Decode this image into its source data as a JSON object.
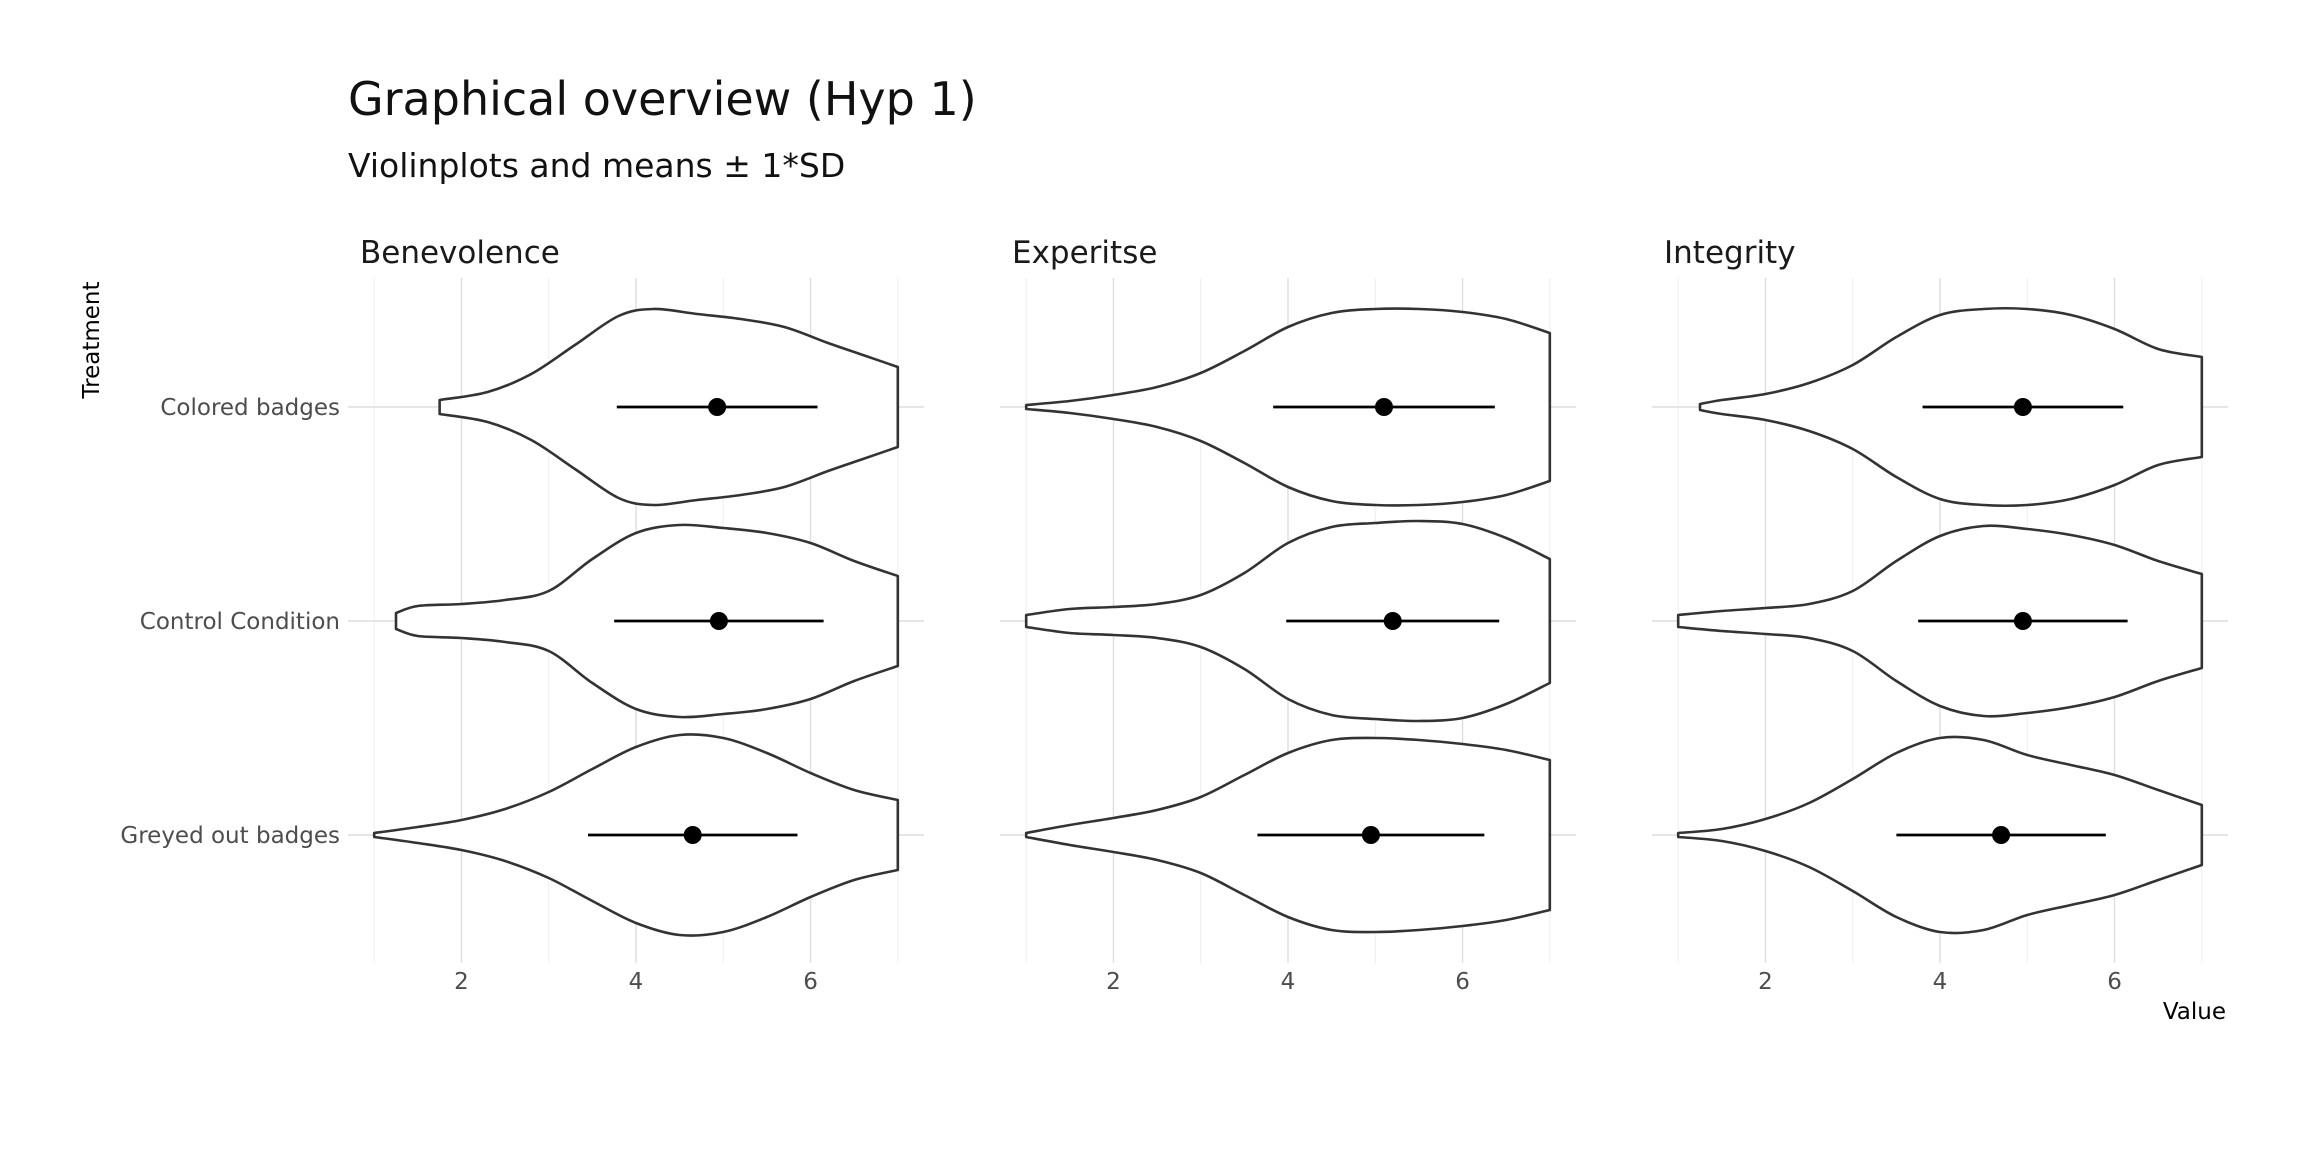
{
  "chart_data": {
    "type": "violin",
    "title": "Graphical overview (Hyp 1)",
    "subtitle": "Violinplots and means ± 1*SD",
    "xlabel": "Value",
    "ylabel": "Treatment",
    "xlim": [
      0.7,
      7.3
    ],
    "x_ticks": [
      2,
      4,
      6
    ],
    "grid": true,
    "categories": [
      "Colored badges",
      "Control Condition",
      "Greyed out badges"
    ],
    "facets": [
      {
        "name": "Benevolence",
        "groups": [
          {
            "category": "Colored badges",
            "mean": 4.93,
            "sd": 1.15,
            "range": [
              1.75,
              7.0
            ],
            "density_y": [
              1.75,
              2.3,
              2.8,
              3.3,
              3.8,
              4.2,
              4.7,
              5.2,
              5.7,
              6.2,
              6.6,
              7.0
            ],
            "density_w": [
              0.07,
              0.15,
              0.33,
              0.62,
              0.91,
              0.98,
              0.93,
              0.88,
              0.8,
              0.64,
              0.52,
              0.4
            ]
          },
          {
            "category": "Control Condition",
            "mean": 4.95,
            "sd": 1.2,
            "range": [
              1.25,
              7.0
            ],
            "density_y": [
              1.25,
              1.5,
              2.0,
              2.5,
              3.0,
              3.5,
              4.0,
              4.5,
              5.0,
              5.5,
              6.0,
              6.5,
              7.0
            ],
            "density_w": [
              0.08,
              0.15,
              0.17,
              0.21,
              0.3,
              0.62,
              0.88,
              0.96,
              0.93,
              0.88,
              0.78,
              0.6,
              0.45
            ]
          },
          {
            "category": "Greyed out badges",
            "mean": 4.65,
            "sd": 1.2,
            "range": [
              1.0,
              7.0
            ],
            "density_y": [
              1.0,
              1.5,
              2.0,
              2.5,
              3.0,
              3.5,
              4.0,
              4.5,
              5.0,
              5.5,
              6.0,
              6.5,
              7.0
            ],
            "density_w": [
              0.02,
              0.08,
              0.15,
              0.26,
              0.43,
              0.66,
              0.88,
              1.0,
              0.97,
              0.82,
              0.62,
              0.45,
              0.35
            ]
          }
        ]
      },
      {
        "name": "Experitse",
        "groups": [
          {
            "category": "Colored badges",
            "mean": 5.1,
            "sd": 1.27,
            "range": [
              1.0,
              7.0
            ],
            "density_y": [
              1.0,
              1.5,
              2.0,
              2.5,
              3.0,
              3.5,
              4.0,
              4.5,
              5.0,
              5.5,
              6.0,
              6.5,
              7.0
            ],
            "density_w": [
              0.02,
              0.06,
              0.12,
              0.2,
              0.34,
              0.56,
              0.8,
              0.94,
              0.98,
              0.98,
              0.95,
              0.88,
              0.74
            ]
          },
          {
            "category": "Control Condition",
            "mean": 5.2,
            "sd": 1.22,
            "range": [
              1.0,
              7.0
            ],
            "density_y": [
              1.0,
              1.5,
              2.0,
              2.5,
              3.0,
              3.5,
              4.0,
              4.5,
              5.0,
              5.5,
              6.0,
              6.5,
              7.0
            ],
            "density_w": [
              0.06,
              0.12,
              0.14,
              0.17,
              0.26,
              0.48,
              0.78,
              0.94,
              0.98,
              1.0,
              0.97,
              0.83,
              0.62
            ]
          },
          {
            "category": "Greyed out badges",
            "mean": 4.95,
            "sd": 1.3,
            "range": [
              1.0,
              7.0
            ],
            "density_y": [
              1.0,
              1.5,
              2.0,
              2.5,
              3.0,
              3.5,
              4.0,
              4.5,
              5.0,
              5.5,
              6.0,
              6.5,
              7.0
            ],
            "density_w": [
              0.02,
              0.1,
              0.17,
              0.25,
              0.38,
              0.6,
              0.82,
              0.95,
              0.97,
              0.95,
              0.91,
              0.85,
              0.75
            ]
          }
        ]
      },
      {
        "name": "Integrity",
        "groups": [
          {
            "category": "Colored badges",
            "mean": 4.95,
            "sd": 1.15,
            "range": [
              1.25,
              7.0
            ],
            "density_y": [
              1.25,
              1.5,
              2.0,
              2.5,
              3.0,
              3.5,
              4.0,
              4.5,
              5.0,
              5.5,
              6.0,
              6.5,
              7.0
            ],
            "density_w": [
              0.03,
              0.07,
              0.13,
              0.24,
              0.42,
              0.7,
              0.92,
              0.98,
              0.98,
              0.92,
              0.78,
              0.58,
              0.5
            ]
          },
          {
            "category": "Control Condition",
            "mean": 4.95,
            "sd": 1.2,
            "range": [
              1.0,
              7.0
            ],
            "density_y": [
              1.0,
              1.5,
              2.0,
              2.5,
              3.0,
              3.5,
              4.0,
              4.5,
              5.0,
              5.5,
              6.0,
              6.5,
              7.0
            ],
            "density_w": [
              0.06,
              0.1,
              0.13,
              0.17,
              0.3,
              0.6,
              0.85,
              0.95,
              0.92,
              0.86,
              0.76,
              0.6,
              0.47
            ]
          },
          {
            "category": "Greyed out badges",
            "mean": 4.7,
            "sd": 1.2,
            "range": [
              1.0,
              7.0
            ],
            "density_y": [
              1.0,
              1.5,
              2.0,
              2.5,
              3.0,
              3.5,
              4.0,
              4.5,
              5.0,
              5.5,
              6.0,
              6.5,
              7.0
            ],
            "density_w": [
              0.02,
              0.06,
              0.16,
              0.32,
              0.56,
              0.82,
              0.97,
              0.95,
              0.8,
              0.7,
              0.6,
              0.45,
              0.3
            ]
          }
        ]
      }
    ]
  }
}
